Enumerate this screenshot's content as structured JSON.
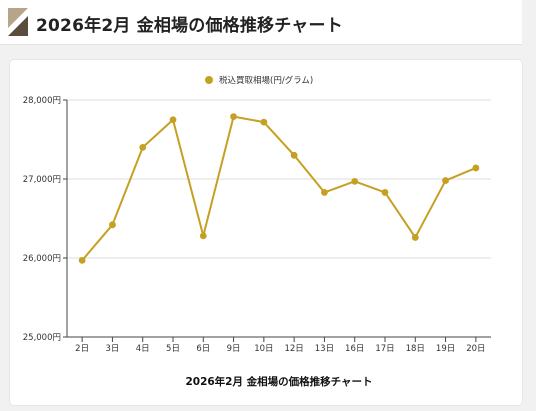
{
  "header": {
    "title": "2026年2月 金相場の価格推移チャート"
  },
  "colors": {
    "series": "#c5a022",
    "mark_dark": "#5a4d3e",
    "mark_light": "#b7a58a",
    "grid": "#dcdcdc",
    "axis": "#444444"
  },
  "chart_data": {
    "type": "line",
    "title": "2026年2月 金相場の価格推移チャート",
    "xlabel": "",
    "ylabel": "",
    "categories": [
      "2日",
      "3日",
      "4日",
      "5日",
      "6日",
      "9日",
      "10日",
      "12日",
      "13日",
      "16日",
      "17日",
      "18日",
      "19日",
      "20日"
    ],
    "series": [
      {
        "name": "税込買取相場(円/グラム)",
        "values": [
          25970,
          26420,
          27400,
          27750,
          26280,
          27790,
          27720,
          27300,
          26830,
          26970,
          26830,
          26260,
          26980,
          27140
        ]
      }
    ],
    "ylim": [
      25000,
      28000
    ],
    "yticks": [
      25000,
      26000,
      27000,
      28000
    ],
    "ytick_labels": [
      "25,000円",
      "26,000円",
      "27,000円",
      "28,000円"
    ],
    "grid": true,
    "legend_position": "top-center"
  }
}
